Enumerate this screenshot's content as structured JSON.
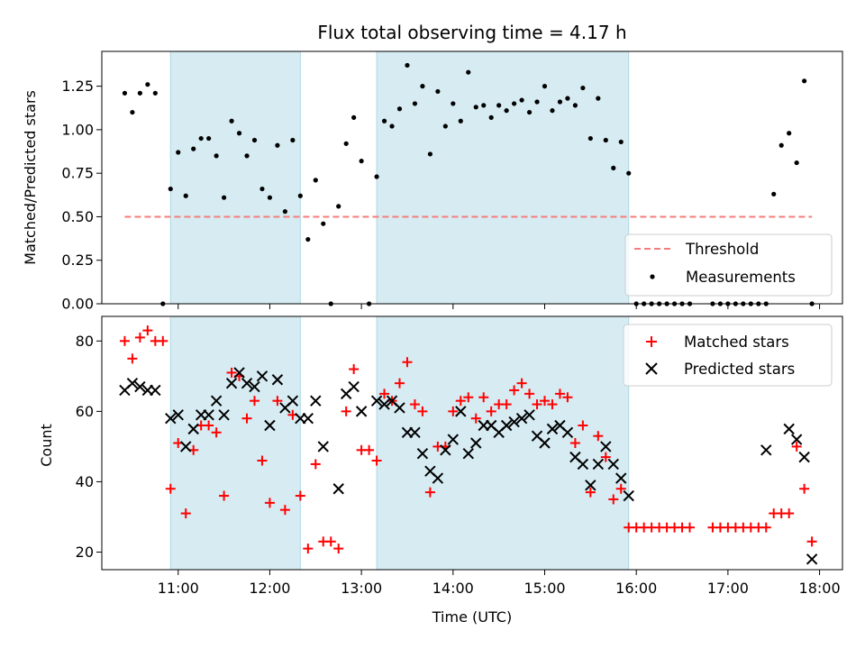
{
  "chart_data": [
    {
      "type": "scatter",
      "title": "Flux total observing time = 4.17 h",
      "ylabel": "Matched/Predicted stars",
      "xlabel": "",
      "ylim": [
        0,
        1.45
      ],
      "yticks": [
        0,
        0.25,
        0.5,
        0.75,
        1.0,
        1.25
      ],
      "ytick_labels": [
        "0.00",
        "0.25",
        "0.50",
        "0.75",
        "1.00",
        "1.25"
      ],
      "legend_position": "lower-right",
      "grid": false,
      "shaded_intervals": [
        {
          "start": "10:55",
          "end": "12:20"
        },
        {
          "start": "13:10",
          "end": "15:55"
        }
      ],
      "series": [
        {
          "name": "Threshold",
          "kind": "line",
          "style": "dashed",
          "color": "#f47c7c",
          "x": [
            "10:25",
            "17:55"
          ],
          "y": [
            0.5,
            0.5
          ]
        },
        {
          "name": "Measurements",
          "kind": "scatter",
          "color": "#000000",
          "x": [
            "10:25",
            "10:30",
            "10:35",
            "10:40",
            "10:45",
            "10:50",
            "10:55",
            "11:00",
            "11:05",
            "11:10",
            "11:15",
            "11:20",
            "11:25",
            "11:30",
            "11:35",
            "11:40",
            "11:45",
            "11:50",
            "11:55",
            "12:00",
            "12:05",
            "12:10",
            "12:15",
            "12:20",
            "12:25",
            "12:30",
            "12:35",
            "12:40",
            "12:45",
            "12:50",
            "12:55",
            "13:00",
            "13:05",
            "13:10",
            "13:15",
            "13:20",
            "13:25",
            "13:30",
            "13:35",
            "13:40",
            "13:45",
            "13:50",
            "13:55",
            "14:00",
            "14:05",
            "14:10",
            "14:15",
            "14:20",
            "14:25",
            "14:30",
            "14:35",
            "14:40",
            "14:45",
            "14:50",
            "14:55",
            "15:00",
            "15:05",
            "15:10",
            "15:15",
            "15:20",
            "15:25",
            "15:30",
            "15:35",
            "15:40",
            "15:45",
            "15:50",
            "15:55",
            "16:00",
            "16:05",
            "16:10",
            "16:15",
            "16:20",
            "16:25",
            "16:30",
            "16:35",
            "16:50",
            "16:55",
            "17:00",
            "17:05",
            "17:10",
            "17:15",
            "17:20",
            "17:25",
            "17:30",
            "17:35",
            "17:40",
            "17:45",
            "17:50",
            "17:55"
          ],
          "y": [
            1.21,
            1.1,
            1.21,
            1.26,
            1.21,
            0.0,
            0.66,
            0.87,
            0.62,
            0.89,
            0.95,
            0.95,
            0.85,
            0.61,
            1.05,
            0.98,
            0.85,
            0.94,
            0.66,
            0.61,
            0.91,
            0.53,
            0.94,
            0.62,
            0.37,
            0.71,
            0.46,
            0.0,
            0.56,
            0.92,
            1.07,
            0.82,
            0.0,
            0.73,
            1.05,
            1.02,
            1.12,
            1.37,
            1.15,
            1.25,
            0.86,
            1.22,
            1.02,
            1.15,
            1.05,
            1.33,
            1.13,
            1.14,
            1.07,
            1.14,
            1.11,
            1.15,
            1.17,
            1.1,
            1.16,
            1.25,
            1.11,
            1.16,
            1.18,
            1.14,
            1.24,
            0.95,
            1.18,
            0.94,
            0.78,
            0.93,
            0.75,
            0.0,
            0.0,
            0.0,
            0.0,
            0.0,
            0.0,
            0.0,
            0.0,
            0.0,
            0.0,
            0.0,
            0.0,
            0.0,
            0.0,
            0.0,
            0.0,
            0.63,
            0.91,
            0.98,
            0.81,
            1.28,
            0.0
          ]
        }
      ]
    },
    {
      "type": "scatter",
      "title": "",
      "xlabel": "Time (UTC)",
      "ylabel": "Count",
      "ylim": [
        15,
        87
      ],
      "yticks": [
        20,
        40,
        60,
        80
      ],
      "ytick_labels": [
        "20",
        "40",
        "60",
        "80"
      ],
      "xlim": [
        "10:10",
        "18:15"
      ],
      "xticks": [
        "11:00",
        "12:00",
        "13:00",
        "14:00",
        "15:00",
        "16:00",
        "17:00",
        "18:00"
      ],
      "legend_position": "upper-right",
      "grid": false,
      "shaded_intervals": [
        {
          "start": "10:55",
          "end": "12:20"
        },
        {
          "start": "13:10",
          "end": "15:55"
        }
      ],
      "series": [
        {
          "name": "Matched stars",
          "marker": "+",
          "color": "#ff0000",
          "x": [
            "10:25",
            "10:30",
            "10:35",
            "10:40",
            "10:45",
            "10:50",
            "10:55",
            "11:00",
            "11:05",
            "11:10",
            "11:15",
            "11:20",
            "11:25",
            "11:30",
            "11:35",
            "11:40",
            "11:45",
            "11:50",
            "11:55",
            "12:00",
            "12:05",
            "12:10",
            "12:15",
            "12:20",
            "12:25",
            "12:30",
            "12:35",
            "12:40",
            "12:45",
            "12:50",
            "12:55",
            "13:00",
            "13:05",
            "13:10",
            "13:15",
            "13:20",
            "13:25",
            "13:30",
            "13:35",
            "13:40",
            "13:45",
            "13:50",
            "13:55",
            "14:00",
            "14:05",
            "14:10",
            "14:15",
            "14:20",
            "14:25",
            "14:30",
            "14:35",
            "14:40",
            "14:45",
            "14:50",
            "14:55",
            "15:00",
            "15:05",
            "15:10",
            "15:15",
            "15:20",
            "15:25",
            "15:30",
            "15:35",
            "15:40",
            "15:45",
            "15:50",
            "15:55",
            "16:00",
            "16:05",
            "16:10",
            "16:15",
            "16:20",
            "16:25",
            "16:30",
            "16:35",
            "16:50",
            "16:55",
            "17:00",
            "17:05",
            "17:10",
            "17:15",
            "17:20",
            "17:25",
            "17:30",
            "17:35",
            "17:40",
            "17:45",
            "17:50",
            "17:55"
          ],
          "y": [
            80,
            75,
            81,
            83,
            80,
            80,
            38,
            51,
            31,
            49,
            56,
            56,
            54,
            36,
            71,
            70,
            58,
            63,
            46,
            34,
            63,
            32,
            59,
            36,
            21,
            45,
            23,
            23,
            21,
            60,
            72,
            49,
            49,
            46,
            65,
            63,
            68,
            74,
            62,
            60,
            37,
            50,
            50,
            60,
            63,
            64,
            58,
            64,
            60,
            62,
            62,
            66,
            68,
            65,
            62,
            63,
            62,
            65,
            64,
            51,
            56,
            37,
            53,
            47,
            35,
            38,
            27,
            27,
            27,
            27,
            27,
            27,
            27,
            27,
            27,
            27,
            27,
            27,
            27,
            27,
            27,
            27,
            27,
            31,
            31,
            31,
            50,
            38,
            23
          ]
        },
        {
          "name": "Predicted stars",
          "marker": "x",
          "color": "#000000",
          "x": [
            "10:25",
            "10:30",
            "10:35",
            "10:40",
            "10:45",
            "10:55",
            "11:00",
            "11:05",
            "11:10",
            "11:15",
            "11:20",
            "11:25",
            "11:30",
            "11:35",
            "11:40",
            "11:45",
            "11:50",
            "11:55",
            "12:00",
            "12:05",
            "12:10",
            "12:15",
            "12:20",
            "12:25",
            "12:30",
            "12:35",
            "12:45",
            "12:50",
            "12:55",
            "13:00",
            "13:10",
            "13:15",
            "13:20",
            "13:25",
            "13:30",
            "13:35",
            "13:40",
            "13:45",
            "13:50",
            "13:55",
            "14:00",
            "14:05",
            "14:10",
            "14:15",
            "14:20",
            "14:25",
            "14:30",
            "14:35",
            "14:40",
            "14:45",
            "14:50",
            "14:55",
            "15:00",
            "15:05",
            "15:10",
            "15:15",
            "15:20",
            "15:25",
            "15:30",
            "15:35",
            "15:40",
            "15:45",
            "15:50",
            "15:55",
            "17:25",
            "17:40",
            "17:45",
            "17:50",
            "17:55"
          ],
          "y": [
            66,
            68,
            67,
            66,
            66,
            58,
            59,
            50,
            55,
            59,
            59,
            63,
            59,
            68,
            71,
            68,
            67,
            70,
            56,
            69,
            61,
            63,
            58,
            58,
            63,
            50,
            38,
            65,
            67,
            60,
            63,
            62,
            63,
            61,
            54,
            54,
            48,
            43,
            41,
            49,
            52,
            60,
            48,
            51,
            56,
            56,
            54,
            56,
            57,
            58,
            59,
            53,
            51,
            55,
            56,
            54,
            47,
            45,
            39,
            45,
            50,
            45,
            41,
            36,
            49,
            55,
            52,
            47,
            18
          ]
        }
      ]
    }
  ]
}
